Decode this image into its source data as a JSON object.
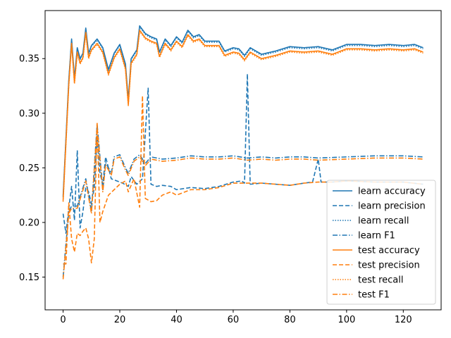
{
  "chart_data": {
    "type": "line",
    "title": "",
    "xlabel": "",
    "ylabel": "",
    "xlim": [
      -6.35,
      133.35
    ],
    "ylim": [
      0.12,
      0.394
    ],
    "xticks": [
      0,
      20,
      40,
      60,
      80,
      100,
      120
    ],
    "xtick_labels": [
      "0",
      "20",
      "40",
      "60",
      "80",
      "100",
      "120"
    ],
    "yticks": [
      0.15,
      0.2,
      0.25,
      0.3,
      0.35
    ],
    "ytick_labels": [
      "0.15",
      "0.20",
      "0.25",
      "0.30",
      "0.35"
    ],
    "grid": false,
    "legend_position": "lower right",
    "colors": {
      "learn": "#1f77b4",
      "test": "#ff7f0e"
    },
    "keypoints": {
      "accuracy": [
        [
          0,
          0.224
        ],
        [
          2,
          0.33
        ],
        [
          3,
          0.368
        ],
        [
          4,
          0.332
        ],
        [
          5,
          0.36
        ],
        [
          6,
          0.35
        ],
        [
          7,
          0.355
        ],
        [
          8,
          0.378
        ],
        [
          9,
          0.355
        ],
        [
          10,
          0.362
        ],
        [
          12,
          0.368
        ],
        [
          14,
          0.36
        ],
        [
          16,
          0.34
        ],
        [
          18,
          0.355
        ],
        [
          20,
          0.363
        ],
        [
          22,
          0.345
        ],
        [
          23,
          0.312
        ],
        [
          24,
          0.35
        ],
        [
          26,
          0.358
        ],
        [
          27,
          0.38
        ],
        [
          29,
          0.373
        ],
        [
          31,
          0.37
        ],
        [
          33,
          0.368
        ],
        [
          34,
          0.356
        ],
        [
          36,
          0.368
        ],
        [
          38,
          0.362
        ],
        [
          40,
          0.37
        ],
        [
          42,
          0.365
        ],
        [
          44,
          0.376
        ],
        [
          46,
          0.37
        ],
        [
          48,
          0.372
        ],
        [
          50,
          0.366
        ],
        [
          55,
          0.366
        ],
        [
          57,
          0.357
        ],
        [
          60,
          0.36
        ],
        [
          62,
          0.359
        ],
        [
          64,
          0.353
        ],
        [
          66,
          0.36
        ],
        [
          68,
          0.357
        ],
        [
          70,
          0.354
        ],
        [
          75,
          0.357
        ],
        [
          80,
          0.361
        ],
        [
          85,
          0.36
        ],
        [
          90,
          0.361
        ],
        [
          95,
          0.358
        ],
        [
          100,
          0.363
        ],
        [
          105,
          0.363
        ],
        [
          110,
          0.362
        ],
        [
          115,
          0.363
        ],
        [
          120,
          0.362
        ],
        [
          124,
          0.363
        ],
        [
          127,
          0.36
        ]
      ],
      "precision": [
        [
          0,
          0.208
        ],
        [
          1,
          0.19
        ],
        [
          2,
          0.213
        ],
        [
          3,
          0.233
        ],
        [
          4,
          0.202
        ],
        [
          5,
          0.266
        ],
        [
          6,
          0.195
        ],
        [
          7,
          0.21
        ],
        [
          8,
          0.232
        ],
        [
          9,
          0.228
        ],
        [
          10,
          0.217
        ],
        [
          11,
          0.232
        ],
        [
          12,
          0.278
        ],
        [
          13,
          0.245
        ],
        [
          14,
          0.235
        ],
        [
          15,
          0.26
        ],
        [
          17,
          0.24
        ],
        [
          19,
          0.238
        ],
        [
          21,
          0.236
        ],
        [
          23,
          0.233
        ],
        [
          24,
          0.242
        ],
        [
          26,
          0.235
        ],
        [
          28,
          0.24
        ],
        [
          30,
          0.323
        ],
        [
          31,
          0.235
        ],
        [
          33,
          0.233
        ],
        [
          35,
          0.234
        ],
        [
          38,
          0.233
        ],
        [
          40,
          0.23
        ],
        [
          45,
          0.232
        ],
        [
          50,
          0.231
        ],
        [
          55,
          0.233
        ],
        [
          60,
          0.237
        ],
        [
          63,
          0.238
        ],
        [
          64,
          0.236
        ],
        [
          65,
          0.336
        ],
        [
          66,
          0.235
        ],
        [
          70,
          0.236
        ],
        [
          75,
          0.235
        ],
        [
          80,
          0.234
        ],
        [
          85,
          0.236
        ],
        [
          88,
          0.237
        ],
        [
          90,
          0.258
        ],
        [
          91,
          0.237
        ],
        [
          95,
          0.237
        ],
        [
          100,
          0.238
        ],
        [
          110,
          0.237
        ],
        [
          120,
          0.237
        ],
        [
          127,
          0.235
        ]
      ],
      "f1": [
        [
          0,
          0.15
        ],
        [
          2,
          0.21
        ],
        [
          3,
          0.215
        ],
        [
          5,
          0.215
        ],
        [
          8,
          0.24
        ],
        [
          10,
          0.21
        ],
        [
          12,
          0.29
        ],
        [
          14,
          0.23
        ],
        [
          15,
          0.255
        ],
        [
          17,
          0.245
        ],
        [
          18,
          0.26
        ],
        [
          20,
          0.262
        ],
        [
          22,
          0.25
        ],
        [
          23,
          0.245
        ],
        [
          25,
          0.258
        ],
        [
          27,
          0.262
        ],
        [
          29,
          0.254
        ],
        [
          31,
          0.26
        ],
        [
          35,
          0.258
        ],
        [
          40,
          0.259
        ],
        [
          45,
          0.261
        ],
        [
          50,
          0.26
        ],
        [
          55,
          0.26
        ],
        [
          60,
          0.261
        ],
        [
          65,
          0.259
        ],
        [
          70,
          0.26
        ],
        [
          75,
          0.259
        ],
        [
          80,
          0.26
        ],
        [
          85,
          0.26
        ],
        [
          90,
          0.259
        ],
        [
          100,
          0.26
        ],
        [
          110,
          0.261
        ],
        [
          120,
          0.261
        ],
        [
          127,
          0.26
        ]
      ],
      "test_precision": [
        [
          0,
          0.162
        ],
        [
          1,
          0.162
        ],
        [
          2,
          0.218
        ],
        [
          3,
          0.185
        ],
        [
          4,
          0.173
        ],
        [
          5,
          0.19
        ],
        [
          6,
          0.188
        ],
        [
          7,
          0.192
        ],
        [
          8,
          0.195
        ],
        [
          9,
          0.185
        ],
        [
          10,
          0.163
        ],
        [
          11,
          0.185
        ],
        [
          12,
          0.292
        ],
        [
          13,
          0.2
        ],
        [
          14,
          0.21
        ],
        [
          16,
          0.225
        ],
        [
          18,
          0.23
        ],
        [
          20,
          0.235
        ],
        [
          22,
          0.238
        ],
        [
          23,
          0.228
        ],
        [
          25,
          0.24
        ],
        [
          27,
          0.214
        ],
        [
          28,
          0.316
        ],
        [
          29,
          0.222
        ],
        [
          31,
          0.219
        ],
        [
          33,
          0.22
        ],
        [
          35,
          0.225
        ],
        [
          38,
          0.228
        ],
        [
          40,
          0.225
        ],
        [
          45,
          0.23
        ],
        [
          50,
          0.23
        ],
        [
          55,
          0.232
        ],
        [
          60,
          0.236
        ],
        [
          65,
          0.236
        ],
        [
          70,
          0.236
        ],
        [
          75,
          0.235
        ],
        [
          80,
          0.234
        ],
        [
          85,
          0.236
        ],
        [
          90,
          0.237
        ],
        [
          95,
          0.237
        ],
        [
          100,
          0.238
        ],
        [
          110,
          0.237
        ],
        [
          120,
          0.237
        ],
        [
          127,
          0.235
        ]
      ]
    },
    "series": [
      {
        "name": "learn accuracy",
        "group": "learn",
        "metric": "accuracy",
        "offset": 0,
        "dash": ""
      },
      {
        "name": "learn precision",
        "group": "learn",
        "metric": "precision",
        "offset": 0,
        "dash": "6,3"
      },
      {
        "name": "learn recall",
        "group": "learn",
        "metric": "accuracy",
        "offset": -0.001,
        "dash": "1.5,2"
      },
      {
        "name": "learn F1",
        "group": "learn",
        "metric": "f1",
        "offset": 0,
        "dash": "7,2.5,1.5,2.5"
      },
      {
        "name": "test accuracy",
        "group": "test",
        "metric": "accuracy",
        "offset": -0.004,
        "dash": ""
      },
      {
        "name": "test precision",
        "group": "test",
        "metric": "test_precision",
        "offset": 0,
        "dash": "6,3"
      },
      {
        "name": "test recall",
        "group": "test",
        "metric": "accuracy",
        "offset": -0.005,
        "dash": "1.5,2"
      },
      {
        "name": "test F1",
        "group": "test",
        "metric": "f1",
        "offset": -0.002,
        "dash": "7,2.5,1.5,2.5"
      }
    ]
  }
}
